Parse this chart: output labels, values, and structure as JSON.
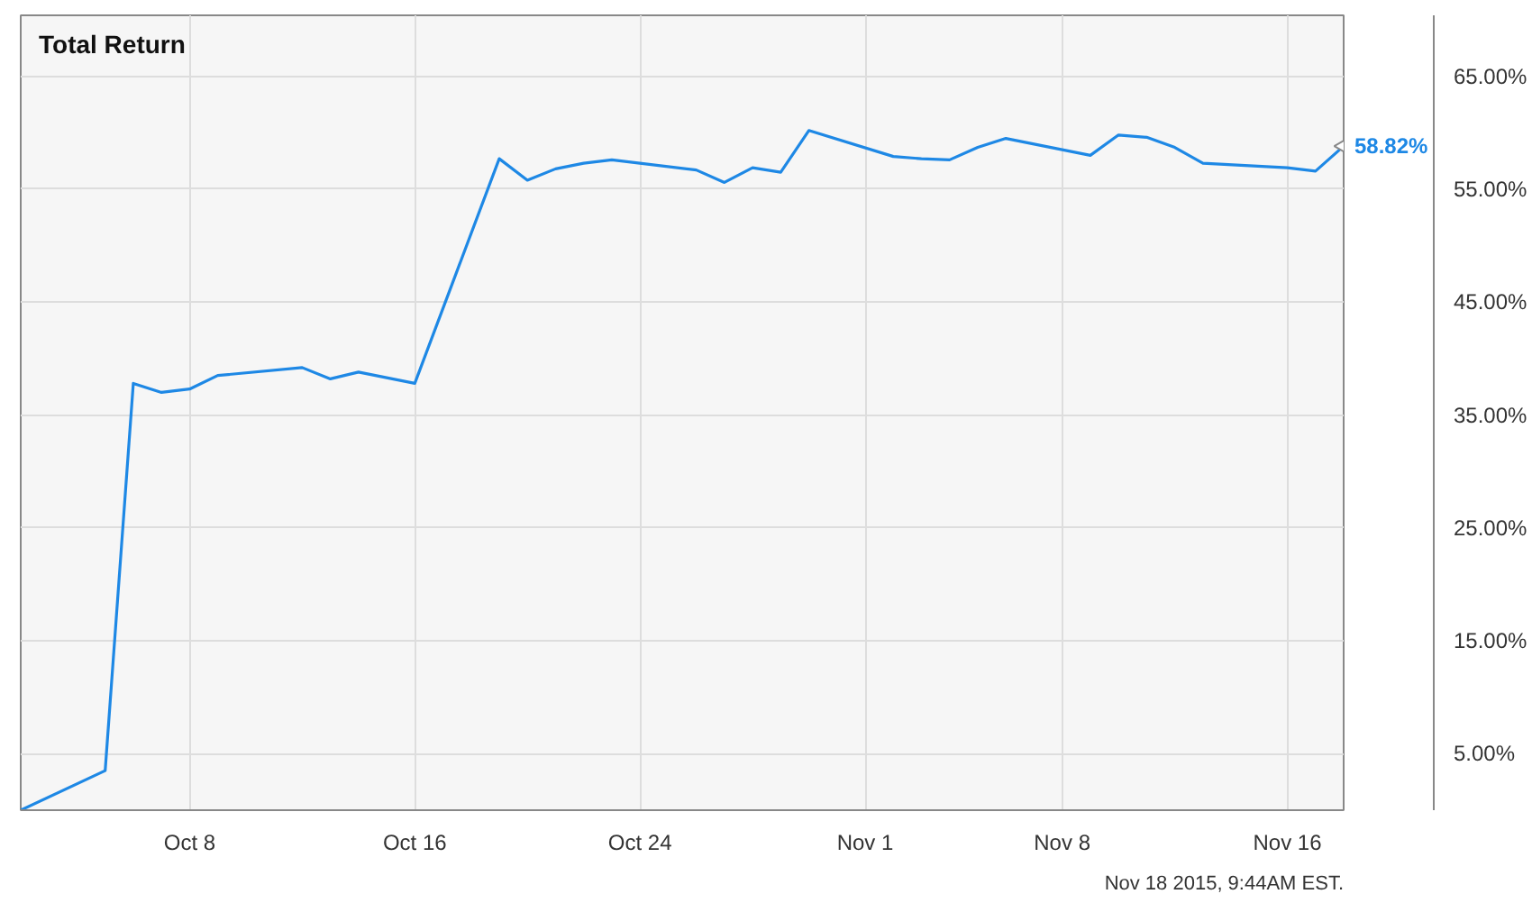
{
  "chart_data": {
    "type": "line",
    "title": "Total Return",
    "x": [
      "2015-10-02",
      "2015-10-05",
      "2015-10-06",
      "2015-10-07",
      "2015-10-08",
      "2015-10-09",
      "2015-10-12",
      "2015-10-13",
      "2015-10-14",
      "2015-10-16",
      "2015-10-19",
      "2015-10-20",
      "2015-10-21",
      "2015-10-22",
      "2015-10-23",
      "2015-10-26",
      "2015-10-27",
      "2015-10-28",
      "2015-10-29",
      "2015-10-30",
      "2015-11-02",
      "2015-11-03",
      "2015-11-04",
      "2015-11-05",
      "2015-11-06",
      "2015-11-09",
      "2015-11-10",
      "2015-11-11",
      "2015-11-12",
      "2015-11-13",
      "2015-11-16",
      "2015-11-17",
      "2015-11-18"
    ],
    "series": [
      {
        "color": "#1e88e5",
        "values": [
          0,
          3.5,
          37.8,
          37.0,
          37.3,
          38.5,
          39.2,
          38.2,
          38.8,
          37.8,
          57.7,
          55.8,
          56.8,
          57.3,
          57.6,
          56.7,
          55.6,
          56.9,
          56.5,
          60.2,
          57.9,
          57.7,
          57.6,
          58.7,
          59.5,
          58.0,
          59.8,
          59.6,
          58.7,
          57.3,
          56.9,
          56.6,
          58.82
        ]
      }
    ],
    "xlim": [
      "2015-10-02",
      "2015-11-18"
    ],
    "xticks": [
      {
        "value": "2015-10-08",
        "label": "Oct 8"
      },
      {
        "value": "2015-10-16",
        "label": "Oct 16"
      },
      {
        "value": "2015-10-24",
        "label": "Oct 24"
      },
      {
        "value": "2015-11-01",
        "label": "Nov 1"
      },
      {
        "value": "2015-11-08",
        "label": "Nov 8"
      },
      {
        "value": "2015-11-16",
        "label": "Nov 16"
      }
    ],
    "ylim": [
      0,
      70.4
    ],
    "yticks": [
      {
        "value": 5,
        "label": "5.00%"
      },
      {
        "value": 15,
        "label": "15.00%"
      },
      {
        "value": 25,
        "label": "25.00%"
      },
      {
        "value": 35,
        "label": "35.00%"
      },
      {
        "value": 45,
        "label": "45.00%"
      },
      {
        "value": 55,
        "label": "55.00%"
      },
      {
        "value": 65,
        "label": "65.00%"
      }
    ],
    "grid": true,
    "marker": "none",
    "line_style": "solid",
    "annotations": [
      {
        "text": "58.82%",
        "x": "2015-11-18",
        "y": 58.82
      },
      "Nov 18 2015, 9:44AM EST."
    ]
  }
}
